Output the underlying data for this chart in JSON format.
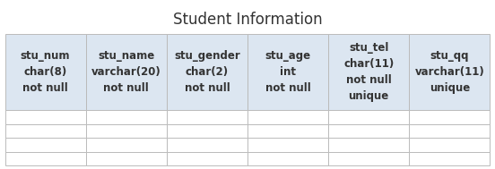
{
  "title": "Student Information",
  "title_fontsize": 12,
  "title_color": "#333333",
  "columns": [
    "stu_num\nchar(8)\nnot null",
    "stu_name\nvarchar(20)\nnot null",
    "stu_gender\nchar(2)\nnot null",
    "stu_age\nint\nnot null",
    "stu_tel\nchar(11)\nnot null\nunique",
    "stu_qq\nvarchar(11)\nunique"
  ],
  "num_data_rows": 4,
  "header_bg": "#dce6f1",
  "data_bg": "#ffffff",
  "grid_color": "#bbbbbb",
  "text_color": "#333333",
  "font_size": 8.5,
  "fig_width": 5.52,
  "fig_height": 1.89
}
